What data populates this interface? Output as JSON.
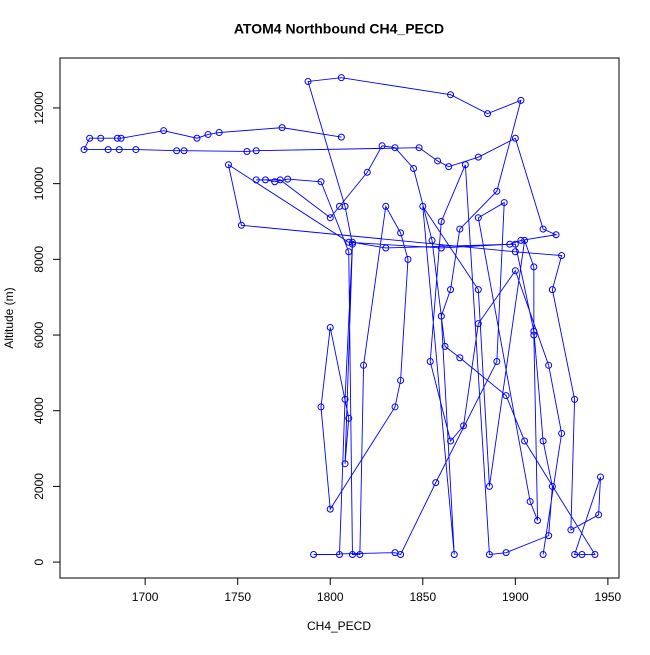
{
  "chart_data": {
    "type": "line",
    "title": "ATOM4 Northbound CH4_PECD",
    "x_label": "CH4_PECD",
    "y_label": "Altitude (m)",
    "color": "#0000ff",
    "xlim": [
      1654,
      1956
    ],
    "ylim": [
      -420,
      13320
    ],
    "xticks": [
      1700,
      1750,
      1800,
      1850,
      1900,
      1950
    ],
    "yticks": [
      0,
      2000,
      4000,
      6000,
      8000,
      10000,
      12000
    ],
    "x": [
      1806,
      1774,
      1740,
      1734,
      1728,
      1710,
      1687,
      1685,
      1676,
      1670,
      1667,
      1680,
      1686,
      1695,
      1717,
      1721,
      1755,
      1760,
      1848,
      1858,
      1864,
      1880,
      1900,
      1915,
      1922,
      1903,
      1897,
      1860,
      1810,
      1745,
      1752,
      1900,
      1925,
      1920,
      1932,
      1930,
      1945,
      1946,
      1932,
      1936,
      1943,
      1905,
      1895,
      1870,
      1862,
      1855,
      1845,
      1835,
      1828,
      1820,
      1805,
      1800,
      1773,
      1760,
      1765,
      1770,
      1777,
      1795,
      1810,
      1812,
      1816,
      1818,
      1830,
      1838,
      1842,
      1838,
      1835,
      1800,
      1795,
      1800,
      1810,
      1808,
      1812,
      1808,
      1788,
      1806,
      1865,
      1885,
      1903,
      1890,
      1870,
      1865,
      1860,
      1867,
      1850,
      1880,
      1886,
      1905,
      1910,
      1910,
      1912,
      1908,
      1880,
      1894,
      1890,
      1857,
      1838,
      1835,
      1791,
      1805,
      1808,
      1812,
      1830,
      1900,
      1910,
      1915,
      1920,
      1918,
      1895,
      1886,
      1873,
      1860,
      1854,
      1865,
      1872,
      1880,
      1900,
      1918,
      1925,
      1915
    ],
    "series": [
      {
        "name": "CH4_PECD",
        "color": "#0000ff",
        "values": [
          11230,
          11480,
          11350,
          11300,
          11200,
          11400,
          11200,
          11200,
          11200,
          11200,
          10900,
          10900,
          10900,
          10900,
          10870,
          10870,
          10850,
          10870,
          10950,
          10600,
          10450,
          10700,
          11200,
          8800,
          8650,
          8500,
          8400,
          8300,
          8450,
          10500,
          8900,
          8200,
          8100,
          7200,
          4300,
          850,
          1250,
          2250,
          200,
          200,
          200,
          3200,
          4400,
          5400,
          5700,
          8500,
          10400,
          10950,
          11000,
          10300,
          9400,
          9100,
          10100,
          10100,
          10100,
          10050,
          10120,
          10050,
          8200,
          200,
          200,
          5200,
          9400,
          8700,
          8000,
          4800,
          4100,
          1400,
          4100,
          6200,
          3800,
          2600,
          8400,
          9400,
          12700,
          12800,
          12350,
          11850,
          12200,
          9800,
          8800,
          7200,
          6500,
          200,
          9400,
          7200,
          2000,
          8500,
          7800,
          6000,
          1100,
          1600,
          9100,
          9500,
          5300,
          2100,
          200,
          250,
          200,
          200,
          4300,
          8450,
          8300,
          8400,
          6100,
          3200,
          2000,
          700,
          250,
          200,
          10500,
          9000,
          5300,
          3200,
          3600,
          6300,
          7700,
          5200,
          3400,
          200
        ]
      }
    ]
  }
}
